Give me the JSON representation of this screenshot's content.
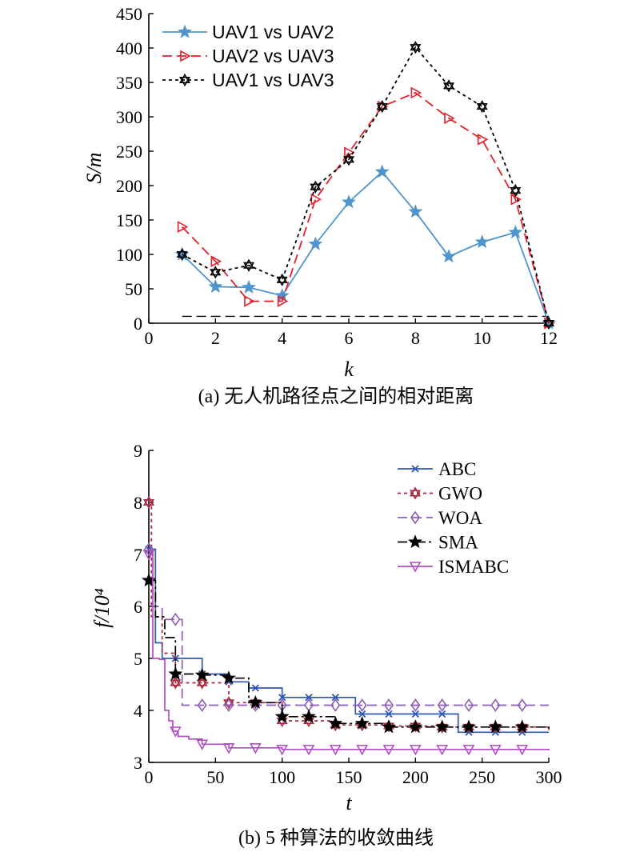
{
  "chart_data": [
    {
      "type": "line",
      "xlabel": "k",
      "ylabel": "S/m",
      "xlim": [
        0,
        12
      ],
      "ylim": [
        0,
        450
      ],
      "xticks": [
        0,
        2,
        4,
        6,
        8,
        10,
        12
      ],
      "yticks": [
        0,
        50,
        100,
        150,
        200,
        250,
        300,
        350,
        400,
        450
      ],
      "caption": "(a) 无人机路径点之间的相对距离",
      "legend_position": "top-left",
      "series": [
        {
          "name": "UAV1 vs UAV2",
          "color": "#4f94cd",
          "style": "solid",
          "marker": "star",
          "x": [
            1,
            2,
            3,
            4,
            5,
            6,
            7,
            8,
            9,
            10,
            11,
            12
          ],
          "values": [
            100,
            53,
            52,
            40,
            115,
            176,
            220,
            162,
            97,
            118,
            132,
            0
          ]
        },
        {
          "name": "UAV2 vs UAV3",
          "color": "#e4202a",
          "style": "dashed",
          "marker": "triangle-right",
          "x": [
            1,
            2,
            3,
            4,
            5,
            6,
            7,
            8,
            9,
            10,
            11,
            12
          ],
          "values": [
            140,
            90,
            32,
            32,
            180,
            248,
            315,
            335,
            298,
            267,
            180,
            0
          ]
        },
        {
          "name": "UAV1 vs UAV3",
          "color": "#000000",
          "style": "dotted",
          "marker": "hexagram",
          "x": [
            1,
            2,
            3,
            4,
            5,
            6,
            7,
            8,
            9,
            10,
            11,
            12
          ],
          "values": [
            100,
            74,
            84,
            63,
            198,
            238,
            315,
            401,
            345,
            315,
            193,
            0
          ]
        }
      ],
      "reference_line": {
        "y": 10,
        "x": [
          1,
          12
        ],
        "color": "#000000",
        "style": "dashed"
      }
    },
    {
      "type": "line",
      "xlabel": "t",
      "ylabel": "f/10⁴",
      "xlim": [
        0,
        300
      ],
      "ylim": [
        3,
        9
      ],
      "xticks": [
        0,
        50,
        100,
        150,
        200,
        250,
        300
      ],
      "yticks": [
        3,
        4,
        5,
        6,
        7,
        8,
        9
      ],
      "caption": "(b) 5 种算法的收敛曲线",
      "legend_position": "top-right",
      "series": [
        {
          "name": "ABC",
          "color": "#2e56b6",
          "style": "solid",
          "marker": "x",
          "x": [
            0,
            5,
            10,
            20,
            40,
            60,
            75,
            100,
            155,
            232,
            300
          ],
          "values": [
            7.1,
            5.3,
            5.0,
            5.0,
            4.7,
            4.55,
            4.43,
            4.25,
            3.93,
            3.58,
            3.58
          ]
        },
        {
          "name": "GWO",
          "color": "#a8293f",
          "style": "dotted",
          "marker": "hexagram",
          "x": [
            0,
            2,
            10,
            20,
            60,
            100,
            120,
            140,
            180,
            220,
            300
          ],
          "values": [
            8.0,
            5.8,
            5.1,
            4.53,
            4.15,
            3.8,
            3.8,
            3.72,
            3.7,
            3.68,
            3.62
          ]
        },
        {
          "name": "WOA",
          "color": "#8d5eb8",
          "style": "dashed",
          "marker": "diamond",
          "x": [
            0,
            3,
            10,
            20,
            25,
            300
          ],
          "values": [
            7.1,
            6.0,
            5.75,
            5.75,
            4.1,
            4.1
          ]
        },
        {
          "name": "SMA",
          "color": "#000000",
          "style": "dashdot",
          "marker": "star",
          "x": [
            0,
            5,
            12,
            20,
            40,
            60,
            75,
            100,
            140,
            180,
            300
          ],
          "values": [
            6.5,
            5.8,
            5.4,
            4.7,
            4.68,
            4.62,
            4.15,
            3.88,
            3.75,
            3.68,
            3.6
          ]
        },
        {
          "name": "ISMABC",
          "color": "#b04fc3",
          "style": "solid",
          "marker": "triangle-down",
          "x": [
            0,
            3,
            8,
            12,
            15,
            18,
            22,
            30,
            40,
            60,
            100,
            300
          ],
          "values": [
            7.0,
            5.0,
            4.98,
            4.0,
            3.8,
            3.6,
            3.5,
            3.45,
            3.35,
            3.28,
            3.25,
            3.23
          ]
        }
      ]
    }
  ]
}
